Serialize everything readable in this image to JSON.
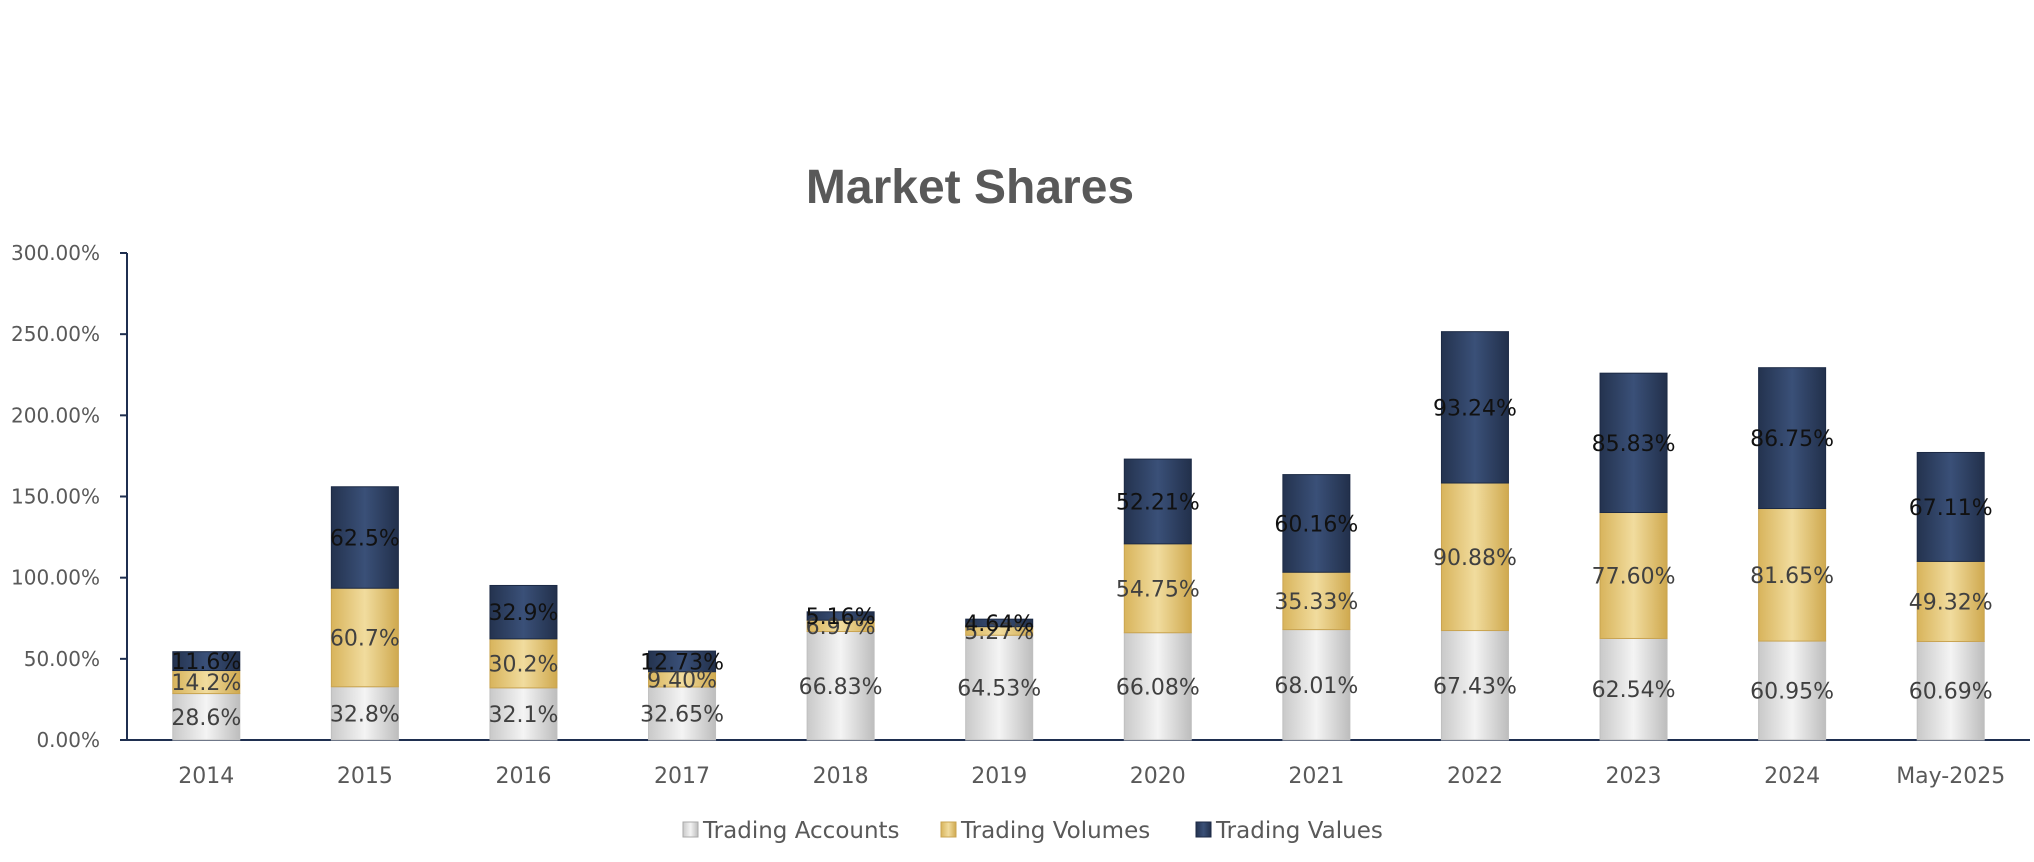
{
  "chart_data": {
    "type": "bar",
    "stacked": true,
    "title": "Market Shares",
    "xlabel": "",
    "ylabel": "",
    "ylim": [
      0,
      300
    ],
    "yticks": [
      "0.00%",
      "50.00%",
      "100.00%",
      "150.00%",
      "200.00%",
      "250.00%",
      "300.00%"
    ],
    "categories": [
      "2014",
      "2015",
      "2016",
      "2017",
      "2018",
      "2019",
      "2020",
      "2021",
      "2022",
      "2023",
      "2024",
      "May-2025"
    ],
    "series": [
      {
        "name": "Trading Accounts",
        "color": "#d9d9d9",
        "values": [
          28.6,
          32.8,
          32.1,
          32.65,
          66.83,
          64.53,
          66.08,
          68.01,
          67.43,
          62.54,
          60.95,
          60.69
        ],
        "labels": [
          "28.6%",
          "32.8%",
          "32.1%",
          "32.65%",
          "66.83%",
          "64.53%",
          "66.08%",
          "68.01%",
          "67.43%",
          "62.54%",
          "60.95%",
          "60.69%"
        ]
      },
      {
        "name": "Trading Volumes",
        "color": "#e6c77a",
        "values": [
          14.2,
          60.7,
          30.2,
          9.4,
          6.97,
          5.27,
          54.75,
          35.33,
          90.88,
          77.6,
          81.65,
          49.32
        ],
        "labels": [
          "14.2%",
          "60.7%",
          "30.2%",
          "9.40%",
          "6.97%",
          "5.27%",
          "54.75%",
          "35.33%",
          "90.88%",
          "77.60%",
          "81.65%",
          "49.32%"
        ]
      },
      {
        "name": "Trading Values",
        "color": "#2e4063",
        "values": [
          11.6,
          62.5,
          32.9,
          12.73,
          5.16,
          4.64,
          52.21,
          60.16,
          93.24,
          85.83,
          86.75,
          67.11
        ],
        "labels": [
          "11.6%",
          "62.5%",
          "32.9%",
          "12.73%",
          "5.16%",
          "4.64%",
          "52.21%",
          "60.16%",
          "93.24%",
          "85.83%",
          "86.75%",
          "67.11%"
        ]
      }
    ],
    "grid": false,
    "legend_position": "bottom"
  }
}
